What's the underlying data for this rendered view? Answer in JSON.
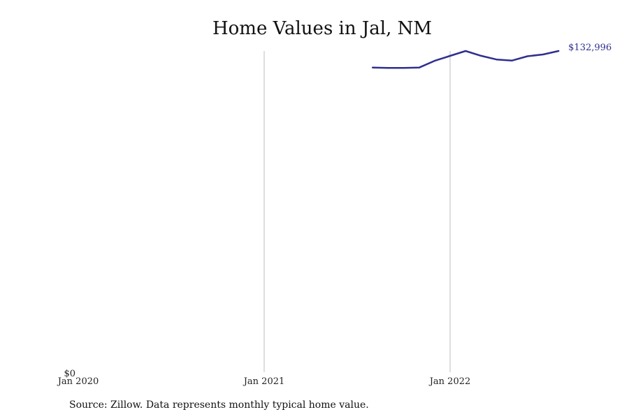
{
  "chart_data": {
    "type": "line",
    "title": "Home Values in Jal, NM",
    "xlabel": "",
    "ylabel": "",
    "x_ticks": [
      "Jan 2020",
      "Jan 2021",
      "Jan 2022"
    ],
    "y_ticks": [
      "$0"
    ],
    "ylim": [
      0,
      133000
    ],
    "x_range": [
      "2020-01",
      "2022-10"
    ],
    "grid": "vertical lines at x tick positions",
    "legend": "none",
    "series": [
      {
        "color": "#2f2f8f",
        "x": [
          "2021-08",
          "2021-09",
          "2021-10",
          "2021-11",
          "2021-12",
          "2022-01",
          "2022-02",
          "2022-03",
          "2022-04",
          "2022-05",
          "2022-06",
          "2022-07",
          "2022-08"
        ],
        "values": [
          126100,
          125950,
          125950,
          126050,
          128900,
          130950,
          133000,
          131000,
          129450,
          129000,
          130800,
          131550,
          132996
        ]
      }
    ],
    "end_label": "$132,996"
  },
  "source_note": "Source: Zillow. Data represents monthly typical home value."
}
